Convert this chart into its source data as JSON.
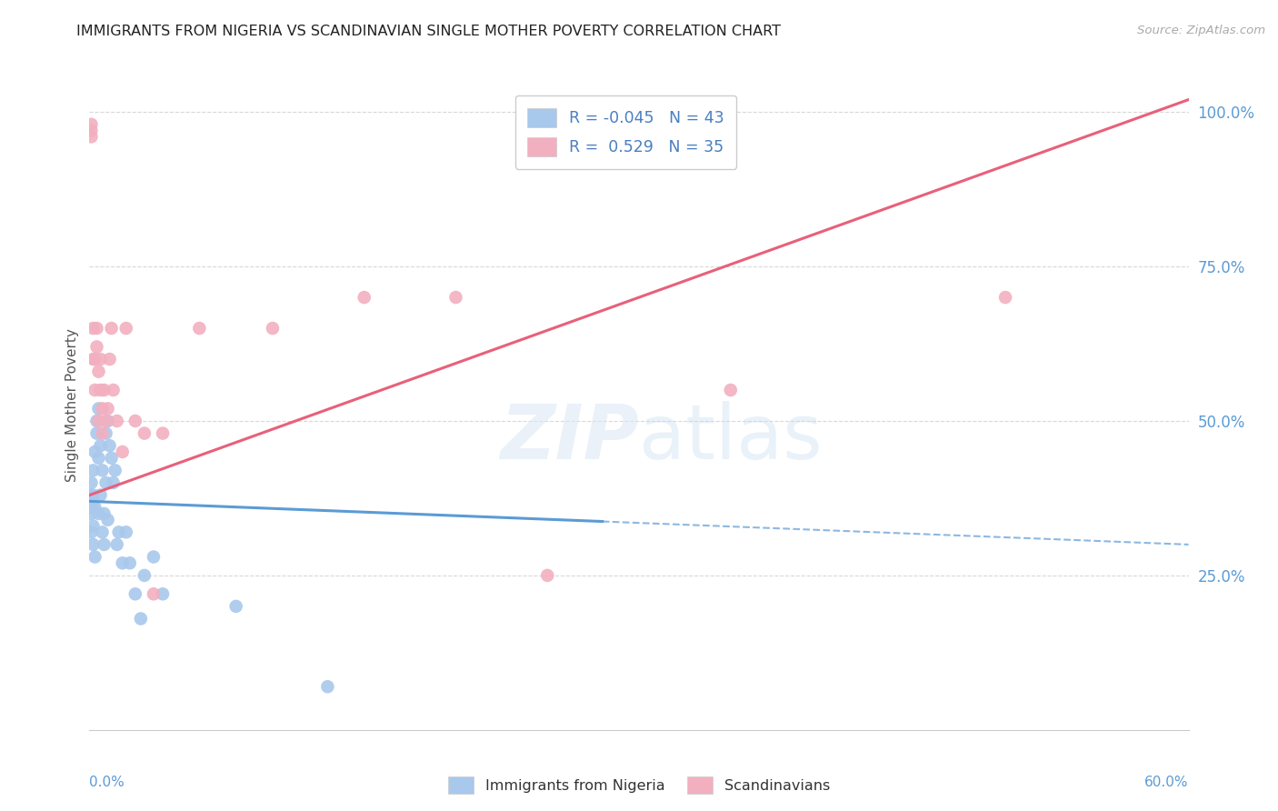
{
  "title": "IMMIGRANTS FROM NIGERIA VS SCANDINAVIAN SINGLE MOTHER POVERTY CORRELATION CHART",
  "source": "Source: ZipAtlas.com",
  "ylabel": "Single Mother Poverty",
  "legend_labels": [
    "Immigrants from Nigeria",
    "Scandinavians"
  ],
  "legend_r": [
    -0.045,
    0.529
  ],
  "legend_n": [
    43,
    35
  ],
  "nigeria_color": "#a8c8ec",
  "scandinavian_color": "#f2afc0",
  "nigeria_line_color": "#5b9bd5",
  "scandinavian_line_color": "#e8607a",
  "xlim": [
    0.0,
    0.6
  ],
  "ylim": [
    0.0,
    1.05
  ],
  "ytick_vals": [
    0.25,
    0.5,
    0.75,
    1.0
  ],
  "ytick_labels": [
    "25.0%",
    "50.0%",
    "75.0%",
    "100.0%"
  ],
  "background_color": "#ffffff",
  "nigeria_x": [
    0.0005,
    0.001,
    0.001,
    0.001,
    0.001,
    0.002,
    0.002,
    0.002,
    0.002,
    0.003,
    0.003,
    0.003,
    0.004,
    0.004,
    0.005,
    0.005,
    0.005,
    0.006,
    0.006,
    0.007,
    0.007,
    0.008,
    0.008,
    0.009,
    0.009,
    0.01,
    0.01,
    0.011,
    0.012,
    0.013,
    0.014,
    0.015,
    0.016,
    0.018,
    0.02,
    0.022,
    0.025,
    0.028,
    0.03,
    0.035,
    0.04,
    0.08,
    0.13
  ],
  "nigeria_y": [
    0.38,
    0.36,
    0.32,
    0.4,
    0.35,
    0.42,
    0.38,
    0.3,
    0.33,
    0.45,
    0.36,
    0.28,
    0.48,
    0.5,
    0.52,
    0.44,
    0.35,
    0.46,
    0.38,
    0.42,
    0.32,
    0.3,
    0.35,
    0.48,
    0.4,
    0.5,
    0.34,
    0.46,
    0.44,
    0.4,
    0.42,
    0.3,
    0.32,
    0.27,
    0.32,
    0.27,
    0.22,
    0.18,
    0.25,
    0.28,
    0.22,
    0.2,
    0.07
  ],
  "scand_x": [
    0.001,
    0.001,
    0.001,
    0.002,
    0.002,
    0.003,
    0.003,
    0.004,
    0.004,
    0.005,
    0.005,
    0.006,
    0.006,
    0.007,
    0.007,
    0.008,
    0.009,
    0.01,
    0.011,
    0.012,
    0.013,
    0.015,
    0.018,
    0.02,
    0.025,
    0.03,
    0.035,
    0.04,
    0.06,
    0.1,
    0.15,
    0.2,
    0.25,
    0.35,
    0.5
  ],
  "scand_y": [
    0.98,
    0.97,
    0.96,
    0.6,
    0.65,
    0.55,
    0.6,
    0.65,
    0.62,
    0.58,
    0.5,
    0.55,
    0.6,
    0.48,
    0.52,
    0.55,
    0.5,
    0.52,
    0.6,
    0.65,
    0.55,
    0.5,
    0.45,
    0.65,
    0.5,
    0.48,
    0.22,
    0.48,
    0.65,
    0.65,
    0.7,
    0.7,
    0.25,
    0.55,
    0.7
  ],
  "nig_trend_x0": 0.0,
  "nig_trend_x1": 0.6,
  "nig_trend_y0": 0.37,
  "nig_trend_y1": 0.3,
  "scand_trend_x0": 0.0,
  "scand_trend_x1": 0.6,
  "scand_trend_y0": 0.38,
  "scand_trend_y1": 1.02
}
